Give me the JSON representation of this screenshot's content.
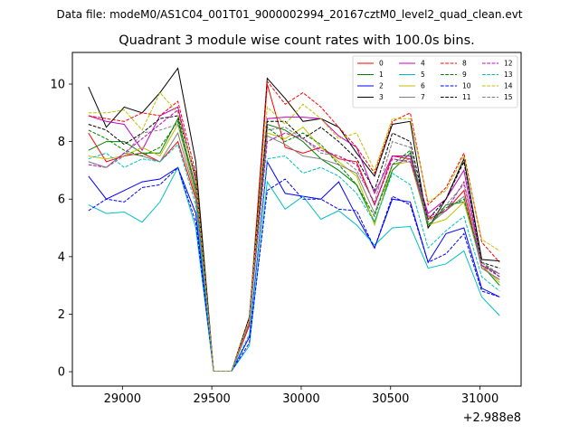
{
  "suptitle": "Data file: modeM0/AS1C04_001T01_9000002994_20167cztM0_level2_quad_clean.evt",
  "chart_data": {
    "type": "line",
    "title": "Quadrant 3 module wise count rates with 100.0s bins.",
    "xlabel": "",
    "ylabel": "",
    "x_offset_label": "+2.988e8",
    "xlim": [
      28720,
      31230
    ],
    "ylim": [
      -0.5,
      11.1
    ],
    "xticks": [
      29000,
      29500,
      30000,
      30500,
      31000
    ],
    "xtick_labels": [
      "29000",
      "29500",
      "30000",
      "30500",
      "31000"
    ],
    "yticks": [
      0,
      2,
      4,
      6,
      8,
      10
    ],
    "ytick_labels": [
      "0",
      "2",
      "4",
      "6",
      "8",
      "10"
    ],
    "grid": false,
    "legend_position": "top-right",
    "x": [
      28810,
      28910,
      29010,
      29110,
      29210,
      29310,
      29410,
      29510,
      29610,
      29710,
      29810,
      29910,
      30010,
      30110,
      30210,
      30310,
      30410,
      30510,
      30610,
      30710,
      30810,
      30910,
      31010,
      31110
    ],
    "series": [
      {
        "name": "0",
        "color": "#ff0000",
        "dash": "solid",
        "values": [
          8.3,
          7.3,
          7.5,
          7.6,
          7.3,
          8.0,
          6.0,
          0.02,
          0.02,
          1.6,
          10.0,
          7.8,
          7.6,
          7.8,
          7.4,
          7.3,
          5.8,
          7.5,
          7.4,
          5.3,
          5.6,
          6.3,
          3.6,
          3.2
        ]
      },
      {
        "name": "1",
        "color": "#008000",
        "dash": "solid",
        "values": [
          7.7,
          8.0,
          8.0,
          7.6,
          7.6,
          8.8,
          6.4,
          0.02,
          0.02,
          1.7,
          8.6,
          8.4,
          8.0,
          7.4,
          7.0,
          6.5,
          5.2,
          7.0,
          7.6,
          5.0,
          5.8,
          5.9,
          3.7,
          3.0
        ]
      },
      {
        "name": "2",
        "color": "#0000ff",
        "dash": "solid",
        "values": [
          6.8,
          6.0,
          6.3,
          6.6,
          6.7,
          7.1,
          5.5,
          0.02,
          0.02,
          1.2,
          7.3,
          6.2,
          6.1,
          6.0,
          6.6,
          5.4,
          4.3,
          6.0,
          5.9,
          3.8,
          4.8,
          5.0,
          2.9,
          2.6
        ]
      },
      {
        "name": "3",
        "color": "#000000",
        "dash": "solid",
        "values": [
          9.9,
          8.5,
          9.2,
          9.0,
          9.7,
          10.55,
          7.3,
          0.02,
          0.02,
          1.7,
          10.2,
          9.5,
          8.7,
          8.8,
          8.5,
          7.6,
          6.8,
          8.6,
          8.7,
          5.0,
          6.0,
          7.4,
          3.9,
          3.85
        ]
      },
      {
        "name": "4",
        "color": "#c000c0",
        "dash": "solid",
        "values": [
          8.9,
          8.7,
          8.6,
          7.7,
          8.9,
          9.2,
          6.6,
          0.02,
          0.02,
          1.7,
          8.8,
          8.85,
          8.85,
          8.8,
          8.2,
          7.8,
          6.2,
          7.5,
          7.5,
          5.5,
          6.0,
          7.0,
          3.7,
          3.4
        ]
      },
      {
        "name": "5",
        "color": "#00c0c0",
        "dash": "solid",
        "values": [
          5.8,
          5.5,
          5.55,
          5.2,
          5.9,
          7.1,
          5.0,
          0.02,
          0.02,
          0.9,
          6.6,
          5.65,
          6.1,
          5.3,
          5.6,
          5.1,
          4.4,
          5.0,
          5.05,
          3.6,
          3.75,
          4.2,
          2.6,
          1.95
        ]
      },
      {
        "name": "6",
        "color": "#c0c000",
        "dash": "solid",
        "values": [
          7.5,
          7.4,
          7.5,
          7.8,
          7.5,
          8.6,
          6.2,
          0.02,
          0.02,
          1.7,
          8.3,
          8.1,
          8.5,
          7.8,
          7.3,
          6.8,
          5.1,
          7.2,
          7.3,
          5.1,
          5.3,
          5.9,
          3.7,
          3.1
        ]
      },
      {
        "name": "7",
        "color": "#808080",
        "dash": "solid",
        "values": [
          7.3,
          7.1,
          7.6,
          7.5,
          7.3,
          8.3,
          6.1,
          0.02,
          0.02,
          1.7,
          8.2,
          7.9,
          7.5,
          7.4,
          7.2,
          6.9,
          5.5,
          7.2,
          7.4,
          5.1,
          5.6,
          6.1,
          3.6,
          3.2
        ]
      },
      {
        "name": "8",
        "color": "#ff0000",
        "dash": "dashed",
        "values": [
          8.9,
          8.8,
          8.7,
          9.0,
          8.9,
          9.4,
          6.9,
          0.02,
          0.02,
          1.9,
          10.1,
          9.3,
          9.7,
          9.2,
          8.5,
          7.8,
          6.9,
          8.7,
          9.0,
          5.8,
          6.4,
          7.6,
          4.5,
          3.8
        ]
      },
      {
        "name": "9",
        "color": "#008000",
        "dash": "dashed",
        "values": [
          8.4,
          8.1,
          7.7,
          7.5,
          7.8,
          8.7,
          6.3,
          0.02,
          0.02,
          1.7,
          8.5,
          8.0,
          8.3,
          7.9,
          7.2,
          6.5,
          5.4,
          7.2,
          7.7,
          5.1,
          5.7,
          6.0,
          3.8,
          3.3
        ]
      },
      {
        "name": "10",
        "color": "#0000ff",
        "dash": "dashed",
        "values": [
          5.6,
          6.0,
          5.9,
          6.4,
          6.5,
          7.1,
          5.2,
          0.02,
          0.02,
          1.0,
          6.3,
          6.7,
          6.0,
          6.0,
          5.65,
          5.6,
          4.3,
          6.1,
          5.8,
          3.8,
          4.1,
          4.8,
          2.8,
          2.6
        ]
      },
      {
        "name": "11",
        "color": "#000000",
        "dash": "dashed",
        "values": [
          8.6,
          8.4,
          7.9,
          8.3,
          8.8,
          8.9,
          6.8,
          0.02,
          0.02,
          1.9,
          8.7,
          8.7,
          8.1,
          8.5,
          8.0,
          7.4,
          6.3,
          8.3,
          8.0,
          5.3,
          6.0,
          7.3,
          3.8,
          3.6
        ]
      },
      {
        "name": "12",
        "color": "#c000c0",
        "dash": "dashed",
        "values": [
          7.2,
          7.1,
          7.6,
          8.1,
          8.6,
          9.1,
          6.6,
          0.02,
          0.02,
          1.7,
          8.0,
          8.3,
          8.1,
          7.7,
          7.5,
          7.2,
          5.8,
          7.4,
          7.3,
          5.4,
          5.6,
          6.6,
          3.7,
          3.3
        ]
      },
      {
        "name": "13",
        "color": "#00c0c0",
        "dash": "dashed",
        "values": [
          7.4,
          7.6,
          7.1,
          7.4,
          7.3,
          7.9,
          5.8,
          0.02,
          0.02,
          1.3,
          7.4,
          7.5,
          6.9,
          7.1,
          6.8,
          6.2,
          5.2,
          6.9,
          6.5,
          4.3,
          4.9,
          5.4,
          3.3,
          2.8
        ]
      },
      {
        "name": "14",
        "color": "#c0c000",
        "dash": "dashed",
        "values": [
          9.0,
          9.0,
          9.1,
          8.4,
          9.7,
          9.0,
          6.7,
          0.02,
          0.02,
          1.8,
          9.2,
          8.6,
          9.3,
          8.8,
          8.1,
          8.3,
          7.0,
          8.8,
          8.8,
          5.9,
          6.3,
          7.5,
          4.6,
          4.2
        ]
      },
      {
        "name": "15",
        "color": "#808080",
        "dash": "dashed",
        "values": [
          7.3,
          7.1,
          7.5,
          8.3,
          8.4,
          8.6,
          6.3,
          0.02,
          0.02,
          1.7,
          8.4,
          8.5,
          8.1,
          7.6,
          7.5,
          7.0,
          5.9,
          8.0,
          7.8,
          5.2,
          5.8,
          6.5,
          3.8,
          3.4
        ]
      }
    ]
  }
}
